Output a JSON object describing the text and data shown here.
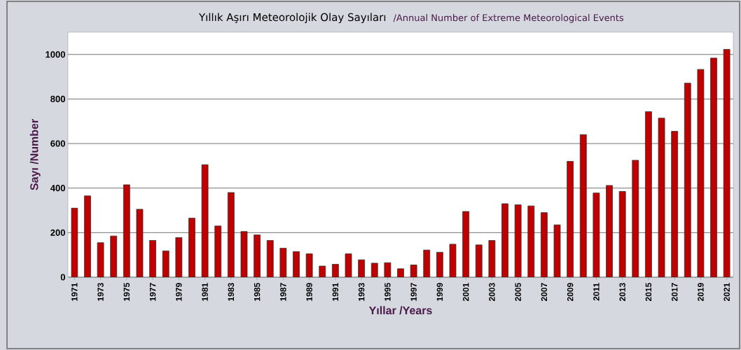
{
  "chart_data": {
    "type": "bar",
    "title": "Yıllık Aşırı Meteorolojik Olay Sayıları",
    "subtitle": "/Annual Number of Extreme Meteorological Events",
    "xlabel": "Yıllar /Years",
    "ylabel": "Sayı /Number",
    "categories": [
      "1971",
      null,
      "1973",
      null,
      "1975",
      null,
      "1977",
      null,
      "1979",
      null,
      "1981",
      null,
      "1983",
      null,
      "1985",
      null,
      "1987",
      null,
      "1989",
      null,
      "1991",
      null,
      "1993",
      null,
      "1995",
      null,
      "1997",
      null,
      "1999",
      null,
      "2001",
      null,
      "2003",
      null,
      "2005",
      null,
      "2007",
      null,
      "2009",
      null,
      "2011",
      null,
      "2013",
      null,
      "2015",
      null,
      "2017",
      null,
      "2019",
      null,
      "2021"
    ],
    "values": [
      310,
      365,
      155,
      185,
      415,
      305,
      165,
      118,
      178,
      265,
      505,
      230,
      380,
      205,
      190,
      165,
      130,
      115,
      105,
      50,
      58,
      105,
      78,
      63,
      65,
      38,
      55,
      122,
      112,
      148,
      295,
      145,
      165,
      330,
      325,
      320,
      290,
      235,
      520,
      640,
      378,
      412,
      385,
      525,
      743,
      714,
      655,
      871,
      933,
      984,
      1023
    ],
    "color": "#c00000",
    "ylim": [
      0,
      1100
    ],
    "yticks": [
      0,
      200,
      400,
      600,
      800,
      1000
    ],
    "grid": "y"
  }
}
